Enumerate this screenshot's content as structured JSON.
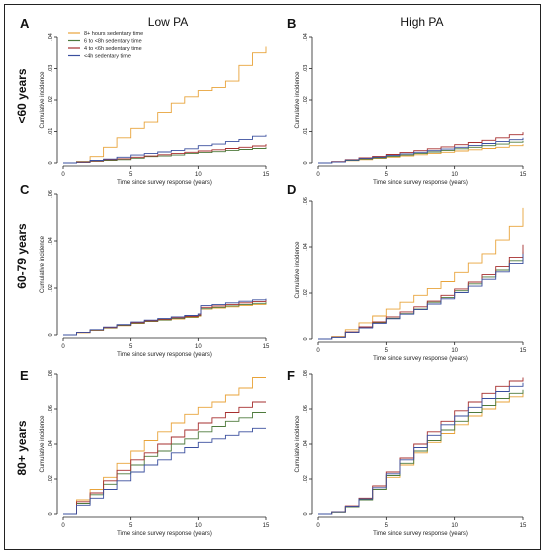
{
  "figure": {
    "column_titles": [
      "Low PA",
      "High PA"
    ],
    "row_titles": [
      "<60 years",
      "60-79 years",
      "80+ years"
    ]
  },
  "legend": {
    "placement": "top-left inside panel A",
    "entries": [
      {
        "label": "8+ hours sedentary time",
        "color": "#E8A33A"
      },
      {
        "label": "6 to <8h sedentary time",
        "color": "#4E7A3C"
      },
      {
        "label": "4 to <6h sedentary time",
        "color": "#A62F2F"
      },
      {
        "label": "<4h sedentary time",
        "color": "#3A4F9E"
      }
    ]
  },
  "chart_data": [
    {
      "panel": "A",
      "type": "line",
      "xlabel": "Time since survey response (years)",
      "ylabel": "Cumulative incidence",
      "xlim": [
        0,
        15
      ],
      "ylim": [
        0,
        0.04
      ],
      "xticks": [
        "0",
        "5",
        "10",
        "15"
      ],
      "yticks": [
        "0",
        ".01",
        ".02",
        ".03",
        ".04"
      ],
      "x": [
        0,
        1,
        2,
        3,
        4,
        5,
        6,
        7,
        8,
        9,
        10,
        11,
        12,
        13,
        14,
        15
      ],
      "series": [
        {
          "name": "8+ hours sedentary time",
          "color": "#E8A33A",
          "values": [
            0,
            0.0005,
            0.002,
            0.005,
            0.008,
            0.011,
            0.013,
            0.016,
            0.019,
            0.021,
            0.023,
            0.024,
            0.026,
            0.031,
            0.035,
            0.037
          ]
        },
        {
          "name": "6 to <8h sedentary time",
          "color": "#4E7A3C",
          "values": [
            0,
            0.0002,
            0.0005,
            0.0008,
            0.001,
            0.0015,
            0.002,
            0.0022,
            0.0025,
            0.003,
            0.0033,
            0.0036,
            0.004,
            0.0043,
            0.0046,
            0.005
          ]
        },
        {
          "name": "4 to <6h sedentary time",
          "color": "#A62F2F",
          "values": [
            0,
            0.0002,
            0.0006,
            0.001,
            0.0013,
            0.0018,
            0.0022,
            0.0026,
            0.003,
            0.0034,
            0.0038,
            0.0042,
            0.0046,
            0.005,
            0.0054,
            0.006
          ]
        },
        {
          "name": "<4h sedentary time",
          "color": "#3A4F9E",
          "values": [
            0,
            0.0003,
            0.0008,
            0.0012,
            0.0018,
            0.0025,
            0.003,
            0.0035,
            0.004,
            0.0045,
            0.0055,
            0.006,
            0.0068,
            0.0075,
            0.0085,
            0.009
          ]
        }
      ]
    },
    {
      "panel": "B",
      "type": "line",
      "xlabel": "Time since survey response (years)",
      "ylabel": "Cumulative incidence",
      "xlim": [
        0,
        15
      ],
      "ylim": [
        0,
        0.04
      ],
      "xticks": [
        "0",
        "5",
        "10",
        "15"
      ],
      "yticks": [
        "0",
        ".01",
        ".02",
        ".03",
        ".04"
      ],
      "x": [
        0,
        1,
        2,
        3,
        4,
        5,
        6,
        7,
        8,
        9,
        10,
        11,
        12,
        13,
        14,
        15
      ],
      "series": [
        {
          "name": "8+ hours sedentary time",
          "color": "#E8A33A",
          "values": [
            0,
            0.0003,
            0.0007,
            0.001,
            0.0014,
            0.0018,
            0.0022,
            0.0026,
            0.003,
            0.0034,
            0.0038,
            0.0042,
            0.0046,
            0.005,
            0.0055,
            0.006
          ]
        },
        {
          "name": "6 to <8h sedentary time",
          "color": "#4E7A3C",
          "values": [
            0,
            0.0003,
            0.0008,
            0.0012,
            0.0016,
            0.0021,
            0.0025,
            0.003,
            0.0035,
            0.004,
            0.0045,
            0.005,
            0.0055,
            0.006,
            0.0066,
            0.007
          ]
        },
        {
          "name": "4 to <6h sedentary time",
          "color": "#A62F2F",
          "values": [
            0,
            0.0004,
            0.001,
            0.0016,
            0.0021,
            0.0027,
            0.0033,
            0.0039,
            0.0045,
            0.0051,
            0.0058,
            0.0065,
            0.0072,
            0.008,
            0.009,
            0.0098
          ]
        },
        {
          "name": "<4h sedentary time",
          "color": "#3A4F9E",
          "values": [
            0,
            0.0003,
            0.0009,
            0.0014,
            0.0018,
            0.0024,
            0.0029,
            0.0034,
            0.0039,
            0.0044,
            0.005,
            0.0056,
            0.0062,
            0.0068,
            0.0074,
            0.008
          ]
        }
      ]
    },
    {
      "panel": "C",
      "type": "line",
      "xlabel": "Time since survey response (years)",
      "ylabel": "Cumulative incidence",
      "xlim": [
        0,
        15
      ],
      "ylim": [
        0,
        0.06
      ],
      "xticks": [
        "0",
        "5",
        "10",
        "15"
      ],
      "yticks": [
        "0",
        ".02",
        ".04",
        ".06"
      ],
      "x": [
        0,
        1,
        2,
        3,
        4,
        5,
        6,
        7,
        8,
        9,
        10,
        10.2,
        11,
        12,
        13,
        14,
        15
      ],
      "series": [
        {
          "name": "8+ hours sedentary time",
          "color": "#E8A33A",
          "values": [
            0,
            0.0009,
            0.0019,
            0.0029,
            0.0039,
            0.0049,
            0.0057,
            0.0063,
            0.0068,
            0.0074,
            0.008,
            0.011,
            0.0115,
            0.012,
            0.0126,
            0.013,
            0.0135
          ]
        },
        {
          "name": "6 to <8h sedentary time",
          "color": "#4E7A3C",
          "values": [
            0,
            0.001,
            0.002,
            0.003,
            0.004,
            0.005,
            0.0058,
            0.0064,
            0.007,
            0.0076,
            0.0082,
            0.0112,
            0.0118,
            0.0124,
            0.013,
            0.0135,
            0.014
          ]
        },
        {
          "name": "4 to <6h sedentary time",
          "color": "#A62F2F",
          "values": [
            0,
            0.001,
            0.0021,
            0.0031,
            0.0042,
            0.0052,
            0.006,
            0.0067,
            0.0073,
            0.0079,
            0.0085,
            0.0118,
            0.0124,
            0.013,
            0.0137,
            0.0143,
            0.015
          ]
        },
        {
          "name": "<4h sedentary time",
          "color": "#3A4F9E",
          "values": [
            0,
            0.0011,
            0.0022,
            0.0033,
            0.0044,
            0.0055,
            0.0063,
            0.007,
            0.0077,
            0.0083,
            0.009,
            0.0125,
            0.013,
            0.0137,
            0.0144,
            0.015,
            0.0155
          ]
        }
      ]
    },
    {
      "panel": "D",
      "type": "line",
      "xlabel": "Time since survey response (years)",
      "ylabel": "Cumulative incidence",
      "xlim": [
        0,
        15
      ],
      "ylim": [
        0,
        0.06
      ],
      "xticks": [
        "0",
        "5",
        "10",
        "15"
      ],
      "yticks": [
        "0",
        ".02",
        ".04",
        ".06"
      ],
      "x": [
        0,
        1,
        2,
        3,
        4,
        5,
        6,
        7,
        8,
        9,
        10,
        11,
        12,
        13,
        14,
        15
      ],
      "series": [
        {
          "name": "8+ hours sedentary time",
          "color": "#E8A33A",
          "values": [
            0,
            0.001,
            0.004,
            0.007,
            0.01,
            0.013,
            0.016,
            0.019,
            0.022,
            0.025,
            0.029,
            0.033,
            0.037,
            0.043,
            0.049,
            0.057
          ]
        },
        {
          "name": "6 to <8h sedentary time",
          "color": "#4E7A3C",
          "values": [
            0,
            0.0008,
            0.003,
            0.005,
            0.007,
            0.009,
            0.011,
            0.013,
            0.016,
            0.018,
            0.021,
            0.024,
            0.027,
            0.03,
            0.034,
            0.038
          ]
        },
        {
          "name": "4 to <6h sedentary time",
          "color": "#A62F2F",
          "values": [
            0,
            0.0008,
            0.003,
            0.0052,
            0.0074,
            0.0096,
            0.0118,
            0.014,
            0.0165,
            0.019,
            0.0218,
            0.0248,
            0.028,
            0.0315,
            0.0355,
            0.041
          ]
        },
        {
          "name": "<4h sedentary time",
          "color": "#3A4F9E",
          "values": [
            0,
            0.0007,
            0.0028,
            0.0048,
            0.0068,
            0.0088,
            0.0108,
            0.0128,
            0.0152,
            0.0175,
            0.0202,
            0.023,
            0.026,
            0.0292,
            0.0328,
            0.037
          ]
        }
      ]
    },
    {
      "panel": "E",
      "type": "line",
      "xlabel": "Time since survey response (years)",
      "ylabel": "Cumulative incidence",
      "xlim": [
        0,
        15
      ],
      "ylim": [
        0,
        0.08
      ],
      "xticks": [
        "0",
        "5",
        "10",
        "15"
      ],
      "yticks": [
        "0",
        ".02",
        ".04",
        ".06",
        ".08"
      ],
      "x": [
        0,
        1,
        2,
        3,
        4,
        5,
        6,
        7,
        8,
        9,
        10,
        11,
        12,
        13,
        14,
        15
      ],
      "series": [
        {
          "name": "8+ hours sedentary time",
          "color": "#E8A33A",
          "values": [
            0,
            0.008,
            0.014,
            0.021,
            0.029,
            0.036,
            0.042,
            0.047,
            0.052,
            0.057,
            0.061,
            0.064,
            0.068,
            0.072,
            0.078,
            0.078
          ]
        },
        {
          "name": "6 to <8h sedentary time",
          "color": "#4E7A3C",
          "values": [
            0,
            0.006,
            0.011,
            0.017,
            0.023,
            0.028,
            0.033,
            0.036,
            0.04,
            0.043,
            0.047,
            0.05,
            0.053,
            0.055,
            0.058,
            0.058
          ]
        },
        {
          "name": "4 to <6h sedentary time",
          "color": "#A62F2F",
          "values": [
            0,
            0.007,
            0.012,
            0.019,
            0.025,
            0.031,
            0.035,
            0.04,
            0.044,
            0.048,
            0.052,
            0.055,
            0.058,
            0.061,
            0.064,
            0.064
          ]
        },
        {
          "name": "<4h sedentary time",
          "color": "#3A4F9E",
          "values": [
            0,
            0.005,
            0.009,
            0.014,
            0.019,
            0.024,
            0.028,
            0.031,
            0.035,
            0.038,
            0.041,
            0.043,
            0.045,
            0.047,
            0.049,
            0.049
          ]
        }
      ]
    },
    {
      "panel": "F",
      "type": "line",
      "xlabel": "Time since survey response (years)",
      "ylabel": "Cumulative incidence",
      "xlim": [
        0,
        15
      ],
      "ylim": [
        0,
        0.08
      ],
      "xticks": [
        "0",
        "5",
        "10",
        "15"
      ],
      "yticks": [
        "0",
        ".02",
        ".04",
        ".06",
        ".08"
      ],
      "x": [
        0,
        1,
        2,
        3,
        4,
        5,
        6,
        7,
        8,
        9,
        10,
        11,
        12,
        13,
        14,
        15
      ],
      "series": [
        {
          "name": "8+ hours sedentary time",
          "color": "#E8A33A",
          "values": [
            0,
            0.001,
            0.004,
            0.008,
            0.014,
            0.021,
            0.028,
            0.035,
            0.041,
            0.046,
            0.051,
            0.056,
            0.06,
            0.064,
            0.067,
            0.069
          ]
        },
        {
          "name": "6 to <8h sedentary time",
          "color": "#4E7A3C",
          "values": [
            0,
            0.001,
            0.004,
            0.008,
            0.014,
            0.022,
            0.029,
            0.036,
            0.042,
            0.048,
            0.053,
            0.058,
            0.062,
            0.066,
            0.069,
            0.071
          ]
        },
        {
          "name": "4 to <6h sedentary time",
          "color": "#A62F2F",
          "values": [
            0,
            0.0012,
            0.0045,
            0.009,
            0.016,
            0.024,
            0.032,
            0.04,
            0.047,
            0.053,
            0.059,
            0.064,
            0.069,
            0.073,
            0.076,
            0.078
          ]
        },
        {
          "name": "<4h sedentary time",
          "color": "#3A4F9E",
          "values": [
            0,
            0.0011,
            0.0042,
            0.0085,
            0.015,
            0.023,
            0.031,
            0.038,
            0.045,
            0.051,
            0.056,
            0.061,
            0.066,
            0.07,
            0.073,
            0.075
          ]
        }
      ]
    }
  ]
}
